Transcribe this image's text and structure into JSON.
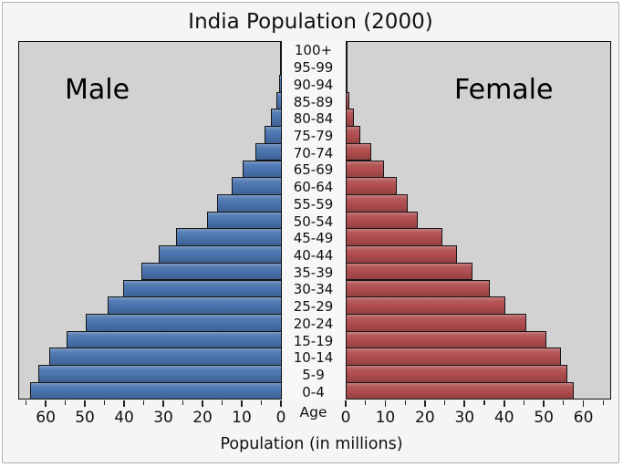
{
  "title": "India Population (2000)",
  "left_panel_label": "Male",
  "right_panel_label": "Female",
  "axis": {
    "xlabel": "Population (in millions)",
    "center_axis_label": "Age",
    "major_ticks": [
      0,
      10,
      20,
      30,
      40,
      50,
      60
    ],
    "minor_tick_step": 5,
    "axis_max": 67
  },
  "colors": {
    "male_bar": "#4a74ae",
    "female_bar": "#b04d4f",
    "panel_bg": "#d2d2d2",
    "figure_bg": "#f5f5f5",
    "center_bg": "#f7f7f7",
    "panel_border": "#111111",
    "figure_border": "#b0b0b0",
    "text": "#111111"
  },
  "chart_data": {
    "type": "bar",
    "subtype": "population-pyramid",
    "title": "India Population (2000)",
    "xlabel": "Population (in millions)",
    "ylabel": "Age",
    "units": "millions of people",
    "x_range_each_side": [
      0,
      67
    ],
    "grid": false,
    "age_groups_top_to_bottom": [
      "100+",
      "95-99",
      "90-94",
      "85-89",
      "80-84",
      "75-79",
      "70-74",
      "65-69",
      "60-64",
      "55-59",
      "50-54",
      "45-49",
      "40-44",
      "35-39",
      "30-34",
      "25-29",
      "20-24",
      "15-19",
      "10-14",
      "5-9",
      "0-4"
    ],
    "series": [
      {
        "name": "Male",
        "side": "left",
        "color": "#4a74ae",
        "values": [
          0.1,
          0.3,
          0.7,
          1.2,
          2.6,
          4.2,
          6.6,
          10.0,
          12.6,
          16.3,
          19.0,
          26.8,
          31.3,
          35.7,
          40.3,
          44.4,
          49.9,
          54.9,
          59.3,
          62.0,
          64.0
        ]
      },
      {
        "name": "Female",
        "side": "right",
        "color": "#b04d4f",
        "values": [
          0.1,
          0.25,
          0.5,
          1.0,
          2.1,
          3.8,
          6.5,
          9.9,
          13.0,
          15.7,
          18.3,
          24.5,
          28.2,
          32.1,
          36.5,
          40.3,
          45.7,
          50.7,
          54.4,
          56.0,
          57.7
        ]
      }
    ]
  }
}
